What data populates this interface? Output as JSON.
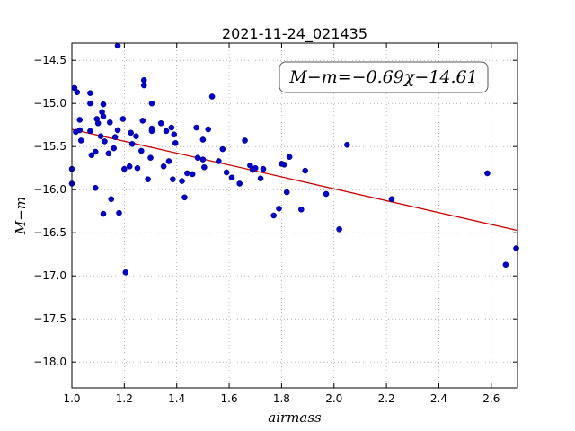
{
  "chart_data": {
    "type": "scatter",
    "title": "2021-11-24_021435",
    "xlabel": "airmass",
    "ylabel": "M−m",
    "xlim": [
      1.0,
      2.7
    ],
    "ylim": [
      -18.3,
      -14.3
    ],
    "x_ticks": [
      1.0,
      1.2,
      1.4,
      1.6,
      1.8,
      2.0,
      2.2,
      2.4,
      2.6
    ],
    "x_tick_labels": [
      "1.0",
      "1.2",
      "1.4",
      "1.6",
      "1.8",
      "2.0",
      "2.2",
      "2.4",
      "2.6"
    ],
    "y_ticks": [
      -14.5,
      -15.0,
      -15.5,
      -16.0,
      -16.5,
      -17.0,
      -17.5,
      -18.0
    ],
    "y_tick_labels": [
      "−14.5",
      "−15.0",
      "−15.5",
      "−16.0",
      "−16.5",
      "−17.0",
      "−17.5",
      "−18.0"
    ],
    "grid": true,
    "annotation": "M−m=−0.69χ−14.61",
    "annotation_position": "top-right",
    "colors": {
      "points": "#0000cc",
      "fit": "#cc0000",
      "grid": "#888888"
    },
    "fit": {
      "slope": -0.69,
      "intercept": -14.61
    },
    "points": [
      [
        1.0,
        -15.76
      ],
      [
        1.0,
        -15.93
      ],
      [
        1.01,
        -14.82
      ],
      [
        1.015,
        -15.33
      ],
      [
        1.02,
        -14.87
      ],
      [
        1.03,
        -15.19
      ],
      [
        1.03,
        -15.31
      ],
      [
        1.035,
        -15.43
      ],
      [
        1.07,
        -14.88
      ],
      [
        1.07,
        -15.0
      ],
      [
        1.07,
        -15.32
      ],
      [
        1.075,
        -15.6
      ],
      [
        1.09,
        -15.56
      ],
      [
        1.09,
        -15.98
      ],
      [
        1.095,
        -15.18
      ],
      [
        1.1,
        -15.23
      ],
      [
        1.11,
        -15.38
      ],
      [
        1.115,
        -15.1
      ],
      [
        1.12,
        -15.15
      ],
      [
        1.12,
        -15.01
      ],
      [
        1.125,
        -15.44
      ],
      [
        1.12,
        -16.28
      ],
      [
        1.14,
        -15.58
      ],
      [
        1.145,
        -15.22
      ],
      [
        1.15,
        -16.11
      ],
      [
        1.16,
        -15.52
      ],
      [
        1.165,
        -15.39
      ],
      [
        1.175,
        -15.31
      ],
      [
        1.175,
        -14.33
      ],
      [
        1.18,
        -16.27
      ],
      [
        1.195,
        -15.18
      ],
      [
        1.2,
        -15.76
      ],
      [
        1.205,
        -16.96
      ],
      [
        1.22,
        -15.73
      ],
      [
        1.225,
        -15.34
      ],
      [
        1.23,
        -15.47
      ],
      [
        1.245,
        -15.38
      ],
      [
        1.25,
        -15.75
      ],
      [
        1.265,
        -15.55
      ],
      [
        1.27,
        -15.2
      ],
      [
        1.275,
        -14.73
      ],
      [
        1.275,
        -14.79
      ],
      [
        1.29,
        -15.88
      ],
      [
        1.3,
        -15.63
      ],
      [
        1.305,
        -15.29
      ],
      [
        1.305,
        -15.32
      ],
      [
        1.305,
        -15.0
      ],
      [
        1.34,
        -15.23
      ],
      [
        1.35,
        -15.73
      ],
      [
        1.36,
        -15.32
      ],
      [
        1.37,
        -15.67
      ],
      [
        1.38,
        -15.28
      ],
      [
        1.385,
        -15.88
      ],
      [
        1.39,
        -15.36
      ],
      [
        1.395,
        -15.46
      ],
      [
        1.42,
        -15.9
      ],
      [
        1.43,
        -16.09
      ],
      [
        1.44,
        -15.81
      ],
      [
        1.46,
        -15.82
      ],
      [
        1.475,
        -15.28
      ],
      [
        1.48,
        -15.63
      ],
      [
        1.5,
        -15.65
      ],
      [
        1.5,
        -15.42
      ],
      [
        1.505,
        -15.74
      ],
      [
        1.52,
        -15.3
      ],
      [
        1.535,
        -14.92
      ],
      [
        1.56,
        -15.67
      ],
      [
        1.575,
        -15.53
      ],
      [
        1.59,
        -15.8
      ],
      [
        1.61,
        -15.86
      ],
      [
        1.64,
        -15.93
      ],
      [
        1.66,
        -15.43
      ],
      [
        1.68,
        -15.72
      ],
      [
        1.69,
        -15.77
      ],
      [
        1.7,
        -15.75
      ],
      [
        1.72,
        -15.87
      ],
      [
        1.73,
        -15.76
      ],
      [
        1.77,
        -16.3
      ],
      [
        1.79,
        -16.22
      ],
      [
        1.8,
        -15.7
      ],
      [
        1.81,
        -15.71
      ],
      [
        1.82,
        -16.03
      ],
      [
        1.83,
        -15.62
      ],
      [
        1.875,
        -16.23
      ],
      [
        1.89,
        -15.78
      ],
      [
        1.97,
        -16.05
      ],
      [
        2.02,
        -16.46
      ],
      [
        2.05,
        -15.48
      ],
      [
        2.22,
        -16.11
      ],
      [
        2.585,
        -15.81
      ],
      [
        2.655,
        -16.87
      ],
      [
        2.695,
        -16.68
      ]
    ]
  }
}
